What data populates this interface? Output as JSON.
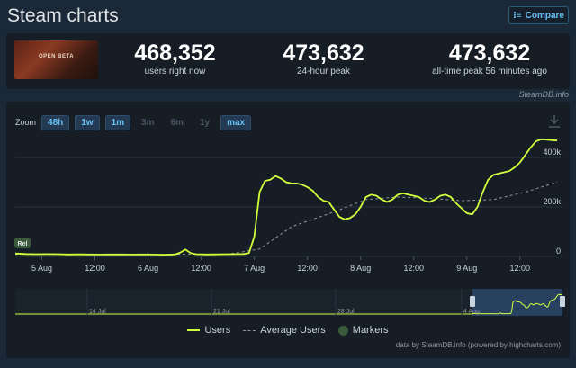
{
  "header": {
    "title": "Steam charts",
    "compare_label": "Compare",
    "compare_icon": "list-icon"
  },
  "game": {
    "banner_text": "OPEN BETA"
  },
  "stats": [
    {
      "value": "468,352",
      "label": "users right now"
    },
    {
      "value": "473,632",
      "label": "24-hour peak"
    },
    {
      "value": "473,632",
      "label": "all-time peak 56 minutes ago"
    }
  ],
  "credit": "SteamDB.info",
  "zoom": {
    "label": "Zoom",
    "buttons": [
      {
        "label": "48h",
        "active": true
      },
      {
        "label": "1w",
        "active": true
      },
      {
        "label": "1m",
        "active": true
      },
      {
        "label": "3m",
        "active": false
      },
      {
        "label": "6m",
        "active": false
      },
      {
        "label": "1y",
        "active": false
      },
      {
        "label": "max",
        "active": true
      }
    ]
  },
  "chart_data": {
    "type": "line",
    "x_ticks": [
      "5 Aug",
      "12:00",
      "6 Aug",
      "12:00",
      "7 Aug",
      "12:00",
      "8 Aug",
      "12:00",
      "9 Aug",
      "12:00"
    ],
    "y_ticks": [
      "0",
      "200k",
      "400k"
    ],
    "ylim": [
      0,
      480000
    ],
    "marker_label": "Rel",
    "navigator_ticks": [
      "14 Jul",
      "21 Jul",
      "28 Jul",
      "4 Aug"
    ],
    "series": [
      {
        "name": "Users",
        "color": "#d0ff3c",
        "x": [
          0,
          0.1,
          0.2,
          0.3,
          0.4,
          0.5,
          0.6,
          0.7,
          0.8,
          0.9,
          1.0,
          1.1,
          1.2,
          1.3,
          1.4,
          1.5,
          1.55,
          1.6,
          1.65,
          1.7,
          1.8,
          1.9,
          2.0,
          2.05,
          2.1,
          2.15,
          2.2,
          2.25,
          2.3,
          2.35,
          2.4,
          2.45,
          2.5,
          2.55,
          2.6,
          2.65,
          2.7,
          2.75,
          2.8,
          2.85,
          2.9,
          2.95,
          3.0,
          3.05,
          3.1,
          3.15,
          3.2,
          3.25,
          3.3,
          3.35,
          3.4,
          3.45,
          3.5,
          3.55,
          3.6,
          3.65,
          3.7,
          3.75,
          3.8,
          3.85,
          3.9,
          3.95,
          4.0,
          4.05,
          4.1,
          4.15,
          4.2,
          4.25,
          4.3,
          4.35,
          4.4,
          4.45,
          4.5,
          4.55,
          4.6,
          4.65,
          4.7,
          4.75,
          4.8,
          4.85,
          4.9,
          4.95,
          5.0,
          5.05,
          5.1
        ],
        "values": [
          12000,
          10000,
          9000,
          9500,
          9000,
          8000,
          8500,
          8000,
          7500,
          8000,
          8000,
          7800,
          8000,
          7500,
          7000,
          8000,
          15000,
          28000,
          14000,
          9000,
          8000,
          8500,
          9000,
          9000,
          9500,
          10000,
          14000,
          80000,
          260000,
          305000,
          310000,
          325000,
          315000,
          300000,
          295000,
          295000,
          290000,
          280000,
          265000,
          240000,
          225000,
          220000,
          190000,
          160000,
          150000,
          155000,
          170000,
          200000,
          240000,
          250000,
          245000,
          230000,
          220000,
          230000,
          250000,
          255000,
          250000,
          245000,
          240000,
          225000,
          220000,
          230000,
          245000,
          250000,
          240000,
          215000,
          195000,
          175000,
          170000,
          200000,
          260000,
          310000,
          330000,
          335000,
          340000,
          345000,
          360000,
          380000,
          410000,
          440000,
          465000,
          473632,
          472000,
          470000,
          468352
        ]
      },
      {
        "name": "Average Users",
        "color": "#8f98a0",
        "x": [
          0,
          1.0,
          2.0,
          2.3,
          2.6,
          3.0,
          3.3,
          3.6,
          3.9,
          4.2,
          4.5,
          4.8,
          5.1
        ],
        "values": [
          8000,
          8000,
          9000,
          30000,
          120000,
          180000,
          230000,
          240000,
          235000,
          225000,
          230000,
          260000,
          300000
        ]
      }
    ],
    "legend": [
      "Users",
      "Average Users",
      "Markers"
    ]
  },
  "data_credit": "data by SteamDB.info (powered by highcharts.com)"
}
